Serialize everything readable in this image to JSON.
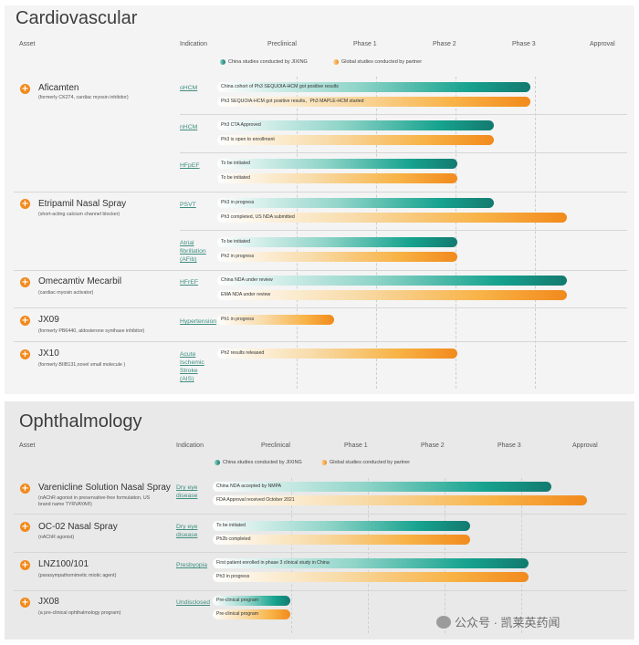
{
  "cardio": {
    "title": "Cardiovascular",
    "headers": {
      "asset": "Asset",
      "indication": "Indication",
      "phases": [
        "Preclinical",
        "Phase 1",
        "Phase 2",
        "Phase 3",
        "Approval"
      ]
    },
    "legend": {
      "china": "China studies conducted by JIXING",
      "global": "Global studies conducted by partner"
    },
    "assets": [
      {
        "name": "Aficamten",
        "sub": [
          "(formerly CK274, cardiac myosin inhibitor)"
        ]
      },
      {
        "name": "Etripamil Nasal Spray",
        "sub": [
          "(short-acting calcium channel blocker)"
        ]
      },
      {
        "name": "Omecamtiv Mecarbil",
        "sub": [
          "(cardiac myosin activator)"
        ]
      },
      {
        "name": "JX09",
        "sub": [
          "(formerly PB6440, aldosterone synthase inhibitor)"
        ]
      },
      {
        "name": "JX10",
        "sub": [
          "(formerly BIIB131,novel small molecule )"
        ]
      }
    ],
    "indications": [
      "oHCM",
      "nHCM",
      "HFpEF",
      "PSVT",
      "Atrial fibrillation (AFib)",
      "HFrEF",
      "Hypertension",
      "Acute Ischemic Stroke (AIS)"
    ],
    "bars": [
      {
        "label": "China cohort of Ph3 SEQUOIA-HCM got positive results",
        "color": "teal",
        "progress": 0.86
      },
      {
        "label": "Ph3 SEQUOIA-HCM got positive results、Ph3 MAPLE-HCM started",
        "color": "orange",
        "progress": 0.86
      },
      {
        "label": "Ph3 CTA Approved",
        "color": "teal",
        "progress": 0.76
      },
      {
        "label": "Ph3 is open to enrollment",
        "color": "orange",
        "progress": 0.76
      },
      {
        "label": "To be initiated",
        "color": "teal",
        "progress": 0.66
      },
      {
        "label": "To be initiated",
        "color": "orange",
        "progress": 0.66
      },
      {
        "label": "Ph3 in progress",
        "color": "teal",
        "progress": 0.76
      },
      {
        "label": "Ph3 completed, US NDA submitted",
        "color": "orange",
        "progress": 0.96
      },
      {
        "label": "To be initiated",
        "color": "teal",
        "progress": 0.66
      },
      {
        "label": "Ph2 in progress",
        "color": "orange",
        "progress": 0.66
      },
      {
        "label": "China NDA under review",
        "color": "teal",
        "progress": 0.96
      },
      {
        "label": "EMA NDA under review",
        "color": "orange",
        "progress": 0.96
      },
      {
        "label": "Ph1 in progress",
        "color": "orange",
        "progress": 0.32
      },
      {
        "label": "Ph2 results released",
        "color": "orange",
        "progress": 0.66
      }
    ]
  },
  "ophth": {
    "title": "Ophthalmology",
    "headers": {
      "asset": "Asset",
      "indication": "Indication",
      "phases": [
        "Preclinical",
        "Phase 1",
        "Phase 2",
        "Phase 3",
        "Approval"
      ]
    },
    "legend": {
      "china": "China studies conducted by JIXING",
      "global": "Global studies conducted by partner"
    },
    "assets": [
      {
        "name": "Varenicline Solution Nasal Spray",
        "sub": [
          "(nAChR agonist in preservative-free formulation, US",
          "brand name TYRVAYA®)"
        ]
      },
      {
        "name": "OC-02 Nasal Spray",
        "sub": [
          "(nAChR agonist)"
        ]
      },
      {
        "name": "LNZ100/101",
        "sub": [
          "(parasympathomimetic miotic agent)"
        ]
      },
      {
        "name": "JX08",
        "sub": [
          "(a pre-clinical ophthalmology program)"
        ]
      }
    ],
    "indications": [
      "Dry eye disease",
      "Dry eye disease",
      "Presbyopia",
      "Undisclosed"
    ],
    "bars": [
      {
        "label": "China NDA accepted by NMPA",
        "color": "teal",
        "progress": 0.87
      },
      {
        "label": "FDA Approval received October 2021",
        "color": "orange",
        "progress": 0.96
      },
      {
        "label": "To be initiated",
        "color": "teal",
        "progress": 0.66
      },
      {
        "label": "Ph2b completed",
        "color": "orange",
        "progress": 0.66
      },
      {
        "label": "First patient enrolled in phase 3 clinical study in China",
        "color": "teal",
        "progress": 0.81
      },
      {
        "label": "Ph3 in progress",
        "color": "orange",
        "progress": 0.81
      },
      {
        "label": "Pre-clinical program",
        "color": "teal",
        "progress": 0.2
      },
      {
        "label": "Pre-clinical program",
        "color": "orange",
        "progress": 0.2
      }
    ]
  },
  "watermark": {
    "text": "公众号 · 凯莱英药闻"
  },
  "colors": {
    "teal": "#137a6f",
    "orange": "#f28a1c",
    "icon": "#f28a1c"
  }
}
